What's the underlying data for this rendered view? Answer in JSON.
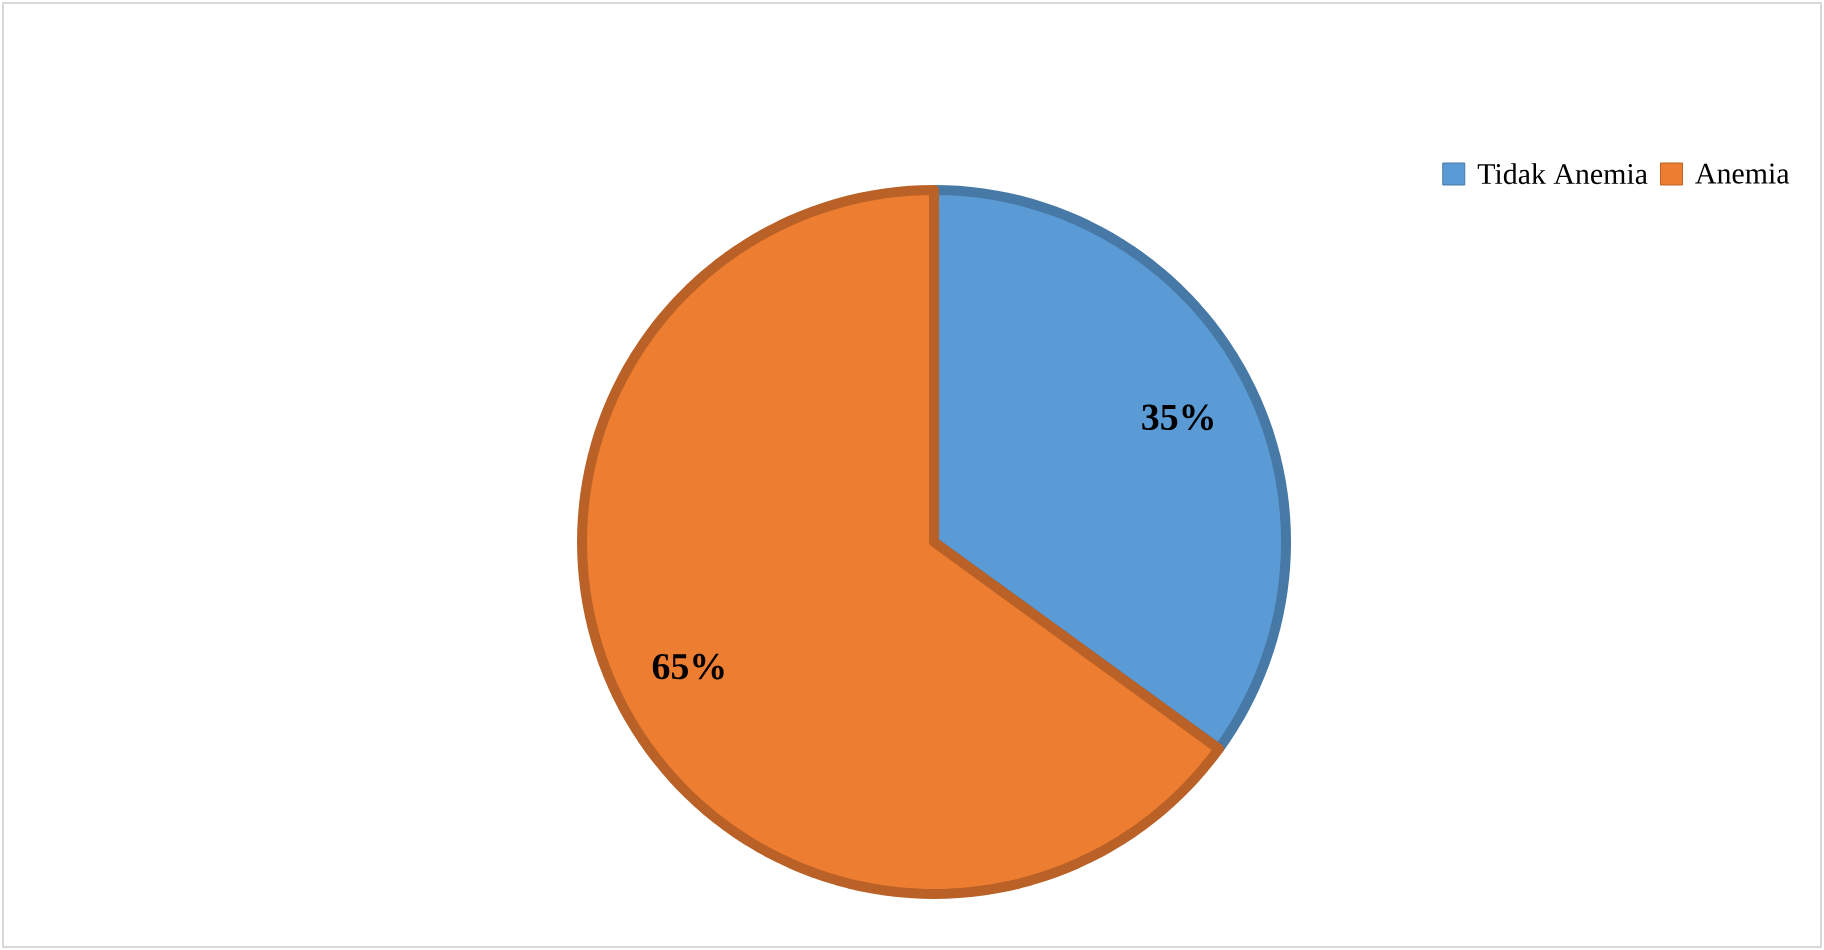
{
  "chart_data": {
    "type": "pie",
    "categories": [
      "Tidak Anemia",
      "Anemia"
    ],
    "values": [
      35,
      65
    ],
    "colors": [
      "#5b9bd5",
      "#ed7d31"
    ],
    "value_labels": [
      "35%",
      "65%"
    ],
    "legend": "top right"
  }
}
